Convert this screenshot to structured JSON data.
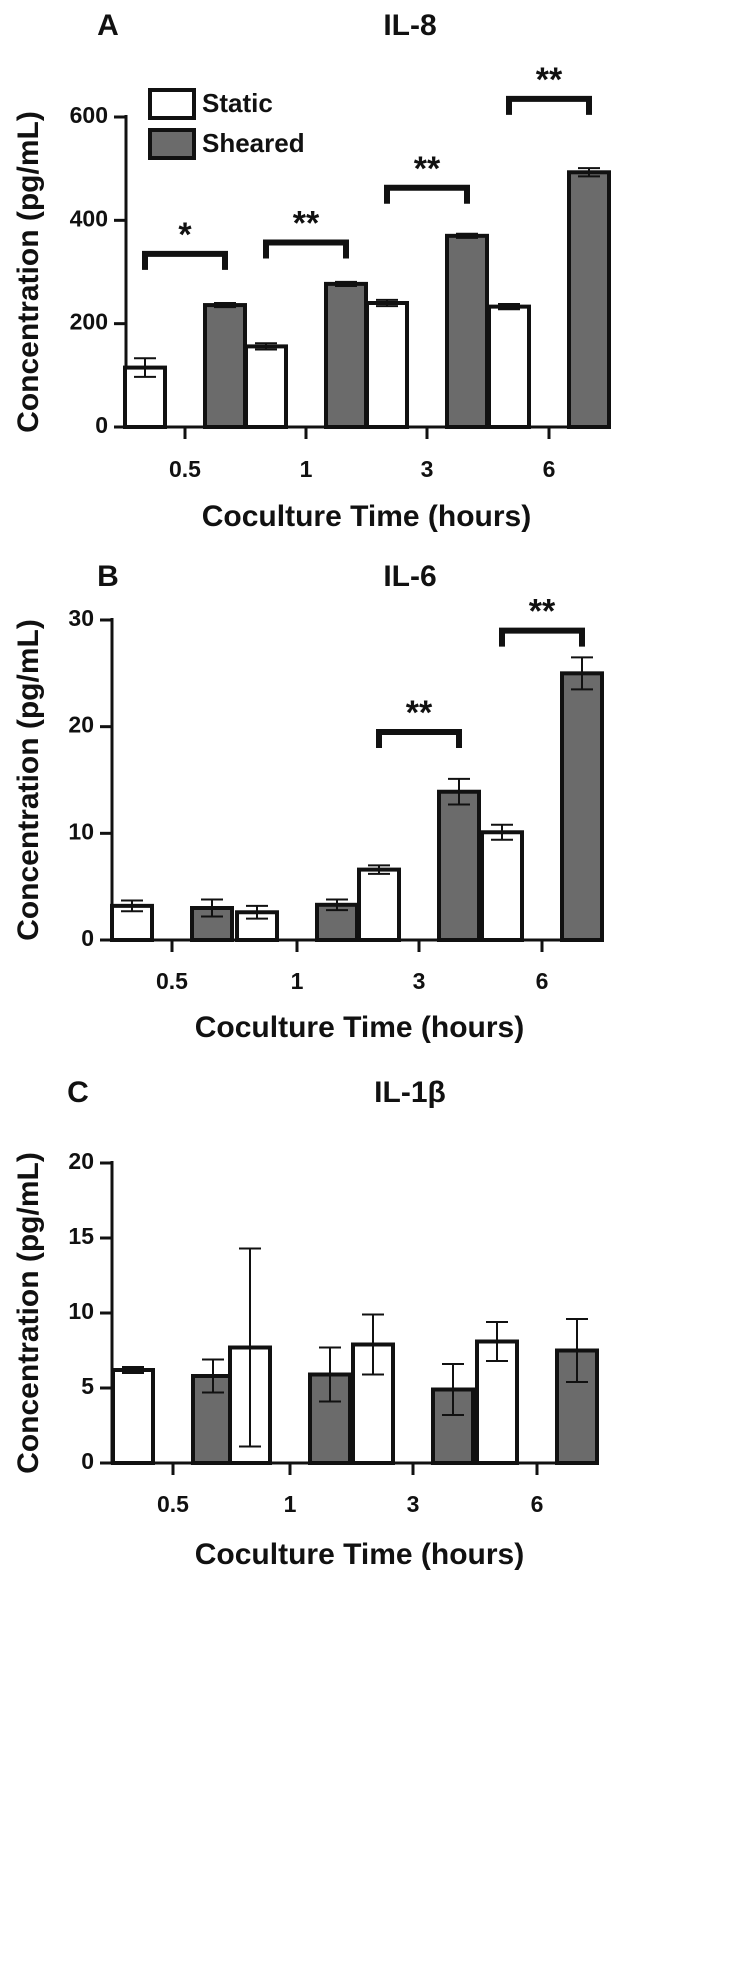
{
  "chart_data": [
    {
      "panel": "A",
      "type": "bar",
      "title": "IL-8",
      "xlabel": "Coculture Time (hours)",
      "ylabel": "Concentration (pg/mL)",
      "ylim": [
        0,
        600
      ],
      "yticks": [
        0,
        200,
        400,
        600
      ],
      "categories": [
        "0.5",
        "1",
        "3",
        "6"
      ],
      "legend": "top-left",
      "series": [
        {
          "name": "Static",
          "color": "#ffffff",
          "values": [
            115,
            156,
            240,
            233
          ],
          "errors": [
            18,
            6,
            6,
            5
          ]
        },
        {
          "name": "Sheared",
          "color": "#6b6b6b",
          "values": [
            236,
            277,
            370,
            493
          ],
          "errors": [
            4,
            4,
            4,
            8
          ]
        }
      ],
      "significance": [
        {
          "category": "0.5",
          "label": "*",
          "y": 335
        },
        {
          "category": "1",
          "label": "**",
          "y": 357
        },
        {
          "category": "3",
          "label": "**",
          "y": 463
        },
        {
          "category": "6",
          "label": "**",
          "y": 635
        }
      ]
    },
    {
      "panel": "B",
      "type": "bar",
      "title": "IL-6",
      "xlabel": "Coculture Time (hours)",
      "ylabel": "Concentration (pg/mL)",
      "ylim": [
        0,
        30
      ],
      "yticks": [
        0,
        10,
        20,
        30
      ],
      "categories": [
        "0.5",
        "1",
        "3",
        "6"
      ],
      "series": [
        {
          "name": "Static",
          "color": "#ffffff",
          "values": [
            3.2,
            2.6,
            6.6,
            10.1
          ],
          "errors": [
            0.5,
            0.6,
            0.4,
            0.7
          ]
        },
        {
          "name": "Sheared",
          "color": "#6b6b6b",
          "values": [
            3.0,
            3.3,
            13.9,
            25.0
          ],
          "errors": [
            0.8,
            0.5,
            1.2,
            1.5
          ]
        }
      ],
      "significance": [
        {
          "category": "3",
          "label": "**",
          "y": 19.5
        },
        {
          "category": "6",
          "label": "**",
          "y": 29.0
        }
      ]
    },
    {
      "panel": "C",
      "type": "bar",
      "title": "IL-1β",
      "xlabel": "Coculture Time (hours)",
      "ylabel": "Concentration (pg/mL)",
      "ylim": [
        0,
        20
      ],
      "yticks": [
        0,
        5,
        10,
        15,
        20
      ],
      "categories": [
        "0.5",
        "1",
        "3",
        "6"
      ],
      "series": [
        {
          "name": "Static",
          "color": "#ffffff",
          "values": [
            6.2,
            7.7,
            7.9,
            8.1
          ],
          "errors": [
            0.2,
            6.6,
            2.0,
            1.3
          ]
        },
        {
          "name": "Sheared",
          "color": "#6b6b6b",
          "values": [
            5.8,
            5.9,
            4.9,
            7.5
          ],
          "errors": [
            1.1,
            1.8,
            1.7,
            2.1
          ]
        }
      ],
      "significance": []
    }
  ]
}
